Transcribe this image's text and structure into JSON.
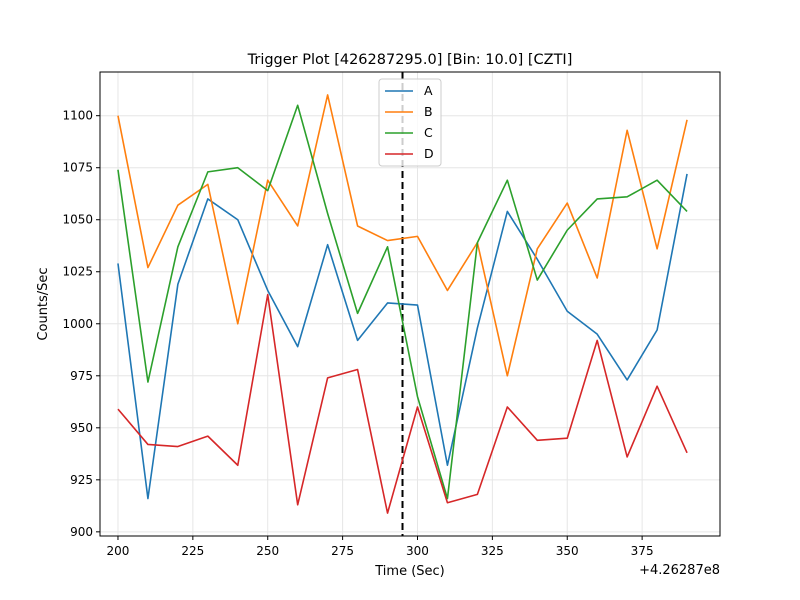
{
  "chart_data": {
    "type": "line",
    "title": "Trigger Plot [426287295.0] [Bin: 10.0] [CZTI]",
    "xlabel": "Time (Sec)",
    "ylabel": "Counts/Sec",
    "x_offset_label": "+4.26287e8",
    "x": [
      200,
      210,
      220,
      230,
      240,
      250,
      260,
      270,
      280,
      290,
      300,
      310,
      320,
      330,
      340,
      350,
      360,
      370,
      380,
      390
    ],
    "xlim": [
      194,
      401
    ],
    "ylim": [
      898,
      1121
    ],
    "x_ticks": [
      200,
      225,
      250,
      275,
      300,
      325,
      350,
      375
    ],
    "y_ticks": [
      900,
      925,
      950,
      975,
      1000,
      1025,
      1050,
      1075,
      1100
    ],
    "grid": true,
    "legend_position": "top-center",
    "trigger_time": 295,
    "trigger_line_color": "#000000",
    "series": [
      {
        "name": "A",
        "color": "#1f77b4",
        "values": [
          1029,
          916,
          1019,
          1060,
          1050,
          1016,
          989,
          1038,
          992,
          1010,
          1009,
          932,
          998,
          1054,
          1031,
          1006,
          995,
          973,
          997,
          1072
        ]
      },
      {
        "name": "B",
        "color": "#ff7f0e",
        "values": [
          1100,
          1027,
          1057,
          1067,
          1000,
          1069,
          1047,
          1110,
          1047,
          1040,
          1042,
          1016,
          1039,
          975,
          1036,
          1058,
          1022,
          1093,
          1036,
          1098
        ]
      },
      {
        "name": "C",
        "color": "#2ca02c",
        "values": [
          1074,
          972,
          1037,
          1073,
          1075,
          1064,
          1105,
          1053,
          1005,
          1037,
          965,
          916,
          1039,
          1069,
          1021,
          1045,
          1060,
          1061,
          1069,
          1054
        ]
      },
      {
        "name": "D",
        "color": "#d62728",
        "values": [
          959,
          942,
          941,
          946,
          932,
          1014,
          913,
          974,
          978,
          909,
          960,
          914,
          918,
          960,
          944,
          945,
          992,
          936,
          970,
          938
        ]
      }
    ]
  }
}
